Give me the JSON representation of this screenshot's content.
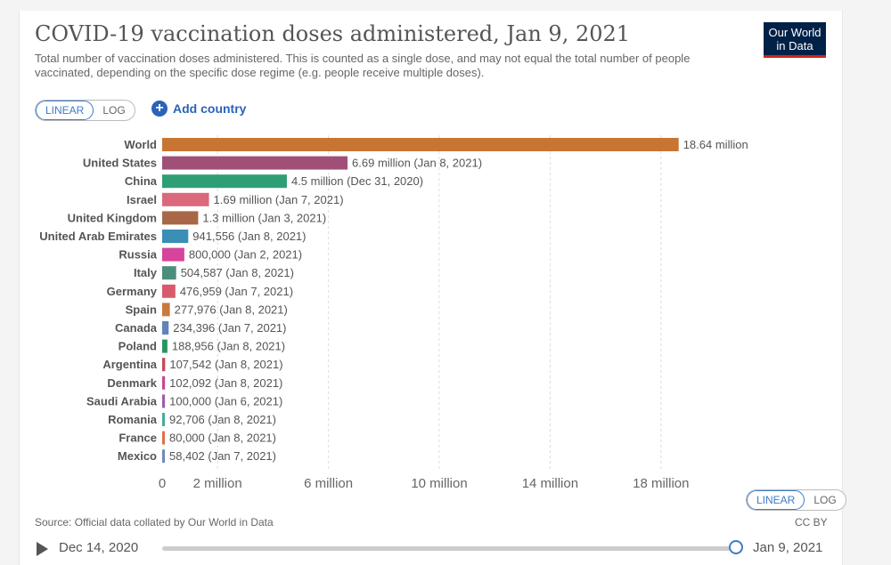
{
  "header": {
    "title": "COVID-19 vaccination doses administered, Jan 9, 2021",
    "subtitle": "Total number of vaccination doses administered. This is counted as a single dose, and may not equal the total number of people vaccinated, depending on the specific dose regime (e.g. people receive multiple doses).",
    "logo_line1": "Our World",
    "logo_line2": "in Data"
  },
  "controls": {
    "linear_label": "LINEAR",
    "log_label": "LOG",
    "add_country_label": "Add country"
  },
  "footer": {
    "source": "Source: Official data collated by Our World in Data",
    "license": "CC BY",
    "timeline_start": "Dec 14, 2020",
    "timeline_end": "Jan 9, 2021"
  },
  "chart_data": {
    "type": "bar",
    "orientation": "horizontal",
    "title": "COVID-19 vaccination doses administered, Jan 9, 2021",
    "xlim": [
      0,
      20000000
    ],
    "x_ticks": [
      0,
      2000000,
      6000000,
      10000000,
      14000000,
      18000000
    ],
    "x_tick_labels": [
      "0",
      "2 million",
      "6 million",
      "10 million",
      "14 million",
      "18 million"
    ],
    "categories": [
      "World",
      "United States",
      "China",
      "Israel",
      "United Kingdom",
      "United Arab Emirates",
      "Russia",
      "Italy",
      "Germany",
      "Spain",
      "Canada",
      "Poland",
      "Argentina",
      "Denmark",
      "Saudi Arabia",
      "Romania",
      "France",
      "Mexico"
    ],
    "values": [
      18640000,
      6690000,
      4500000,
      1690000,
      1300000,
      941556,
      800000,
      504587,
      476959,
      277976,
      234396,
      188956,
      107542,
      102092,
      100000,
      92706,
      80000,
      58402
    ],
    "value_labels": [
      "18.64 million",
      "6.69 million (Jan 8, 2021)",
      "4.5 million (Dec 31, 2020)",
      "1.69 million (Jan 7, 2021)",
      "1.3 million (Jan 3, 2021)",
      "941,556 (Jan 8, 2021)",
      "800,000 (Jan 2, 2021)",
      "504,587 (Jan 8, 2021)",
      "476,959 (Jan 7, 2021)",
      "277,976 (Jan 8, 2021)",
      "234,396 (Jan 7, 2021)",
      "188,956 (Jan 8, 2021)",
      "107,542 (Jan 8, 2021)",
      "102,092 (Jan 8, 2021)",
      "100,000 (Jan 6, 2021)",
      "92,706 (Jan 8, 2021)",
      "80,000 (Jan 8, 2021)",
      "58,402 (Jan 7, 2021)"
    ],
    "colors": [
      "#c87533",
      "#a05077",
      "#2e9e74",
      "#d9697b",
      "#a86848",
      "#3b8eb5",
      "#d6449b",
      "#4a8f7b",
      "#d95b6b",
      "#c97a3e",
      "#6185b8",
      "#2a9460",
      "#c74a5c",
      "#c84a8c",
      "#9a5fae",
      "#4aaa9e",
      "#e0704a",
      "#6f8ab8"
    ],
    "grid": true
  }
}
